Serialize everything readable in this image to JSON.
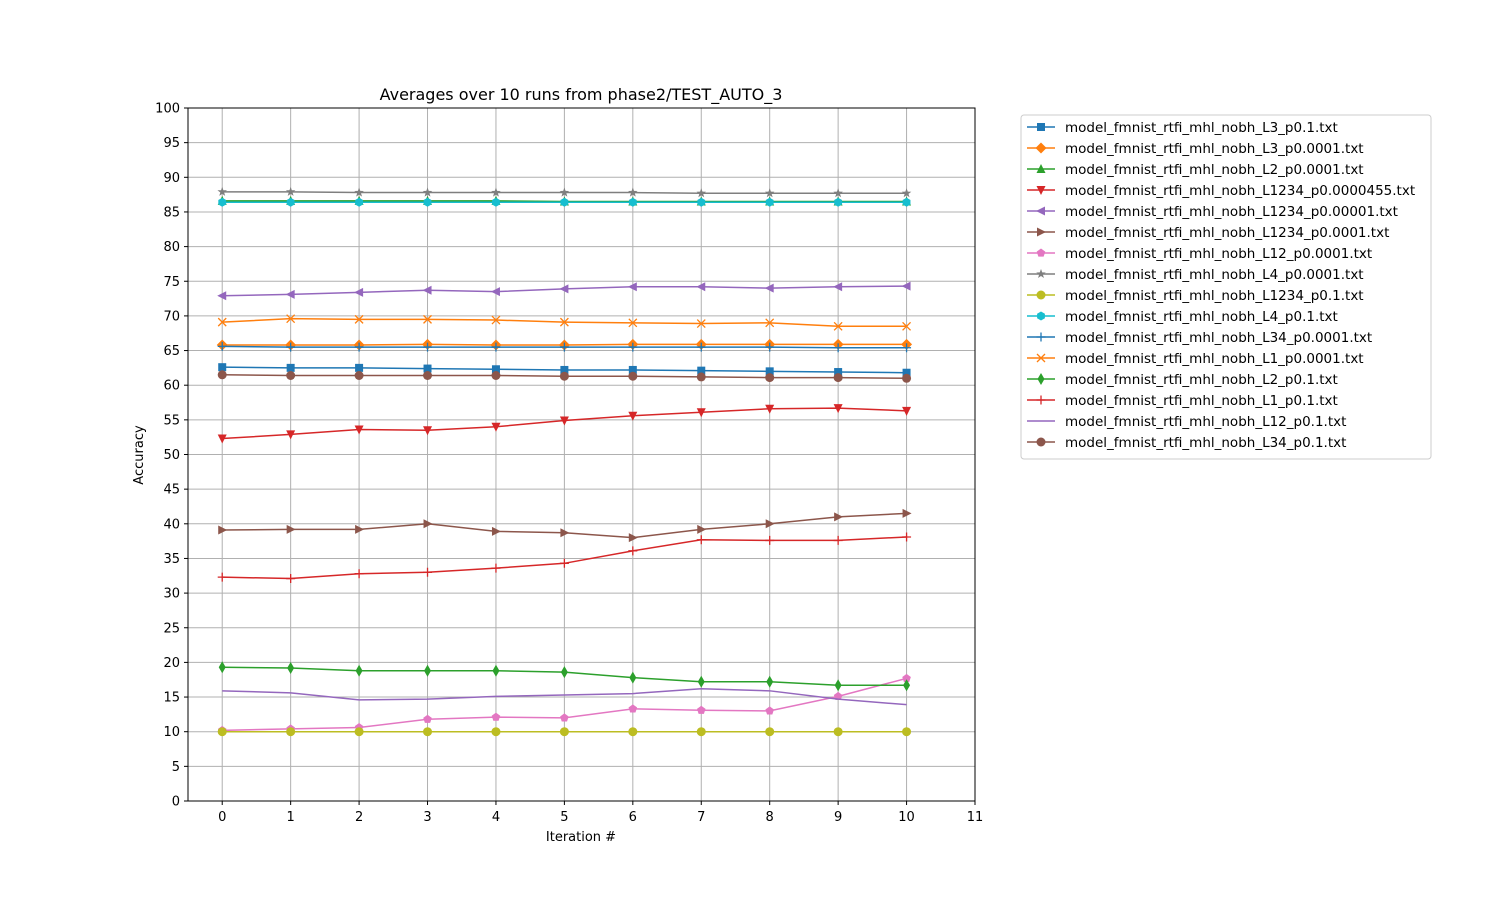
{
  "chart_data": {
    "type": "line",
    "title": "Averages over 10 runs from phase2/TEST_AUTO_3",
    "xlabel": "Iteration #",
    "ylabel": "Accuracy",
    "xlim": [
      -0.5,
      11
    ],
    "ylim": [
      0,
      100
    ],
    "xticks": [
      "0",
      "1",
      "2",
      "3",
      "4",
      "5",
      "6",
      "7",
      "8",
      "9",
      "10",
      "11"
    ],
    "yticks": [
      "0",
      "5",
      "10",
      "15",
      "20",
      "25",
      "30",
      "35",
      "40",
      "45",
      "50",
      "55",
      "60",
      "65",
      "70",
      "75",
      "80",
      "85",
      "90",
      "95",
      "100"
    ],
    "grid": true,
    "legend_position": "outside-right-top",
    "x": [
      0,
      1,
      2,
      3,
      4,
      5,
      6,
      7,
      8,
      9,
      10
    ],
    "series": [
      {
        "name": "model_fmnist_rtfi_mhl_nobh_L3_p0.1.txt",
        "color": "#1f77b4",
        "marker": "square",
        "values": [
          62.6,
          62.5,
          62.5,
          62.4,
          62.3,
          62.2,
          62.2,
          62.1,
          62.0,
          61.9,
          61.8
        ]
      },
      {
        "name": "model_fmnist_rtfi_mhl_nobh_L3_p0.0001.txt",
        "color": "#ff7f0e",
        "marker": "diamond",
        "values": [
          65.8,
          65.8,
          65.8,
          65.9,
          65.8,
          65.8,
          65.9,
          65.9,
          65.9,
          65.9,
          65.9
        ]
      },
      {
        "name": "model_fmnist_rtfi_mhl_nobh_L2_p0.0001.txt",
        "color": "#2ca02c",
        "marker": "triangle-up",
        "values": [
          86.6,
          86.6,
          86.6,
          86.6,
          86.6,
          86.5,
          86.5,
          86.5,
          86.5,
          86.5,
          86.5
        ]
      },
      {
        "name": "model_fmnist_rtfi_mhl_nobh_L1234_p0.0000455.txt",
        "color": "#d62728",
        "marker": "triangle-down",
        "values": [
          52.3,
          52.9,
          53.6,
          53.5,
          54.0,
          54.9,
          55.6,
          56.1,
          56.6,
          56.7,
          56.3
        ]
      },
      {
        "name": "model_fmnist_rtfi_mhl_nobh_L1234_p0.00001.txt",
        "color": "#9467bd",
        "marker": "triangle-left",
        "values": [
          72.9,
          73.1,
          73.4,
          73.7,
          73.5,
          73.9,
          74.2,
          74.2,
          74.0,
          74.2,
          74.3
        ]
      },
      {
        "name": "model_fmnist_rtfi_mhl_nobh_L1234_p0.0001.txt",
        "color": "#8c564b",
        "marker": "triangle-right",
        "values": [
          39.1,
          39.2,
          39.2,
          40.0,
          38.9,
          38.7,
          38.0,
          39.2,
          40.0,
          41.0,
          41.5
        ]
      },
      {
        "name": "model_fmnist_rtfi_mhl_nobh_L12_p0.0001.txt",
        "color": "#e377c2",
        "marker": "pentagon",
        "values": [
          10.2,
          10.4,
          10.6,
          11.8,
          12.1,
          12.0,
          13.3,
          13.1,
          13.0,
          15.1,
          17.7
        ]
      },
      {
        "name": "model_fmnist_rtfi_mhl_nobh_L4_p0.0001.txt",
        "color": "#7f7f7f",
        "marker": "star",
        "values": [
          87.9,
          87.9,
          87.8,
          87.8,
          87.8,
          87.8,
          87.8,
          87.7,
          87.7,
          87.7,
          87.7
        ]
      },
      {
        "name": "model_fmnist_rtfi_mhl_nobh_L1234_p0.1.txt",
        "color": "#bcbd22",
        "marker": "circle",
        "values": [
          10.0,
          10.0,
          10.0,
          10.0,
          10.0,
          10.0,
          10.0,
          10.0,
          10.0,
          10.0,
          10.0
        ]
      },
      {
        "name": "model_fmnist_rtfi_mhl_nobh_L4_p0.1.txt",
        "color": "#17becf",
        "marker": "hexagon",
        "values": [
          86.4,
          86.4,
          86.4,
          86.4,
          86.4,
          86.4,
          86.4,
          86.4,
          86.4,
          86.4,
          86.4
        ]
      },
      {
        "name": "model_fmnist_rtfi_mhl_nobh_L34_p0.0001.txt",
        "color": "#1f77b4",
        "marker": "plus",
        "values": [
          65.6,
          65.5,
          65.5,
          65.5,
          65.5,
          65.5,
          65.5,
          65.5,
          65.5,
          65.4,
          65.4
        ]
      },
      {
        "name": "model_fmnist_rtfi_mhl_nobh_L1_p0.0001.txt",
        "color": "#ff7f0e",
        "marker": "x",
        "values": [
          69.1,
          69.6,
          69.5,
          69.5,
          69.4,
          69.1,
          69.0,
          68.9,
          69.0,
          68.5,
          68.5
        ]
      },
      {
        "name": "model_fmnist_rtfi_mhl_nobh_L2_p0.1.txt",
        "color": "#2ca02c",
        "marker": "thin-diamond",
        "values": [
          19.3,
          19.2,
          18.8,
          18.8,
          18.8,
          18.6,
          17.8,
          17.2,
          17.2,
          16.7,
          16.7
        ]
      },
      {
        "name": "model_fmnist_rtfi_mhl_nobh_L1_p0.1.txt",
        "color": "#d62728",
        "marker": "plus",
        "values": [
          32.3,
          32.1,
          32.8,
          33.0,
          33.6,
          34.3,
          36.1,
          37.7,
          37.6,
          37.6,
          38.1
        ]
      },
      {
        "name": "model_fmnist_rtfi_mhl_nobh_L12_p0.1.txt",
        "color": "#9467bd",
        "marker": "none",
        "values": [
          15.9,
          15.6,
          14.6,
          14.7,
          15.1,
          15.3,
          15.5,
          16.2,
          15.9,
          14.7,
          13.9
        ]
      },
      {
        "name": "model_fmnist_rtfi_mhl_nobh_L34_p0.1.txt",
        "color": "#8c564b",
        "marker": "circle",
        "values": [
          61.5,
          61.4,
          61.4,
          61.4,
          61.4,
          61.3,
          61.3,
          61.2,
          61.1,
          61.1,
          61.0
        ]
      }
    ]
  }
}
